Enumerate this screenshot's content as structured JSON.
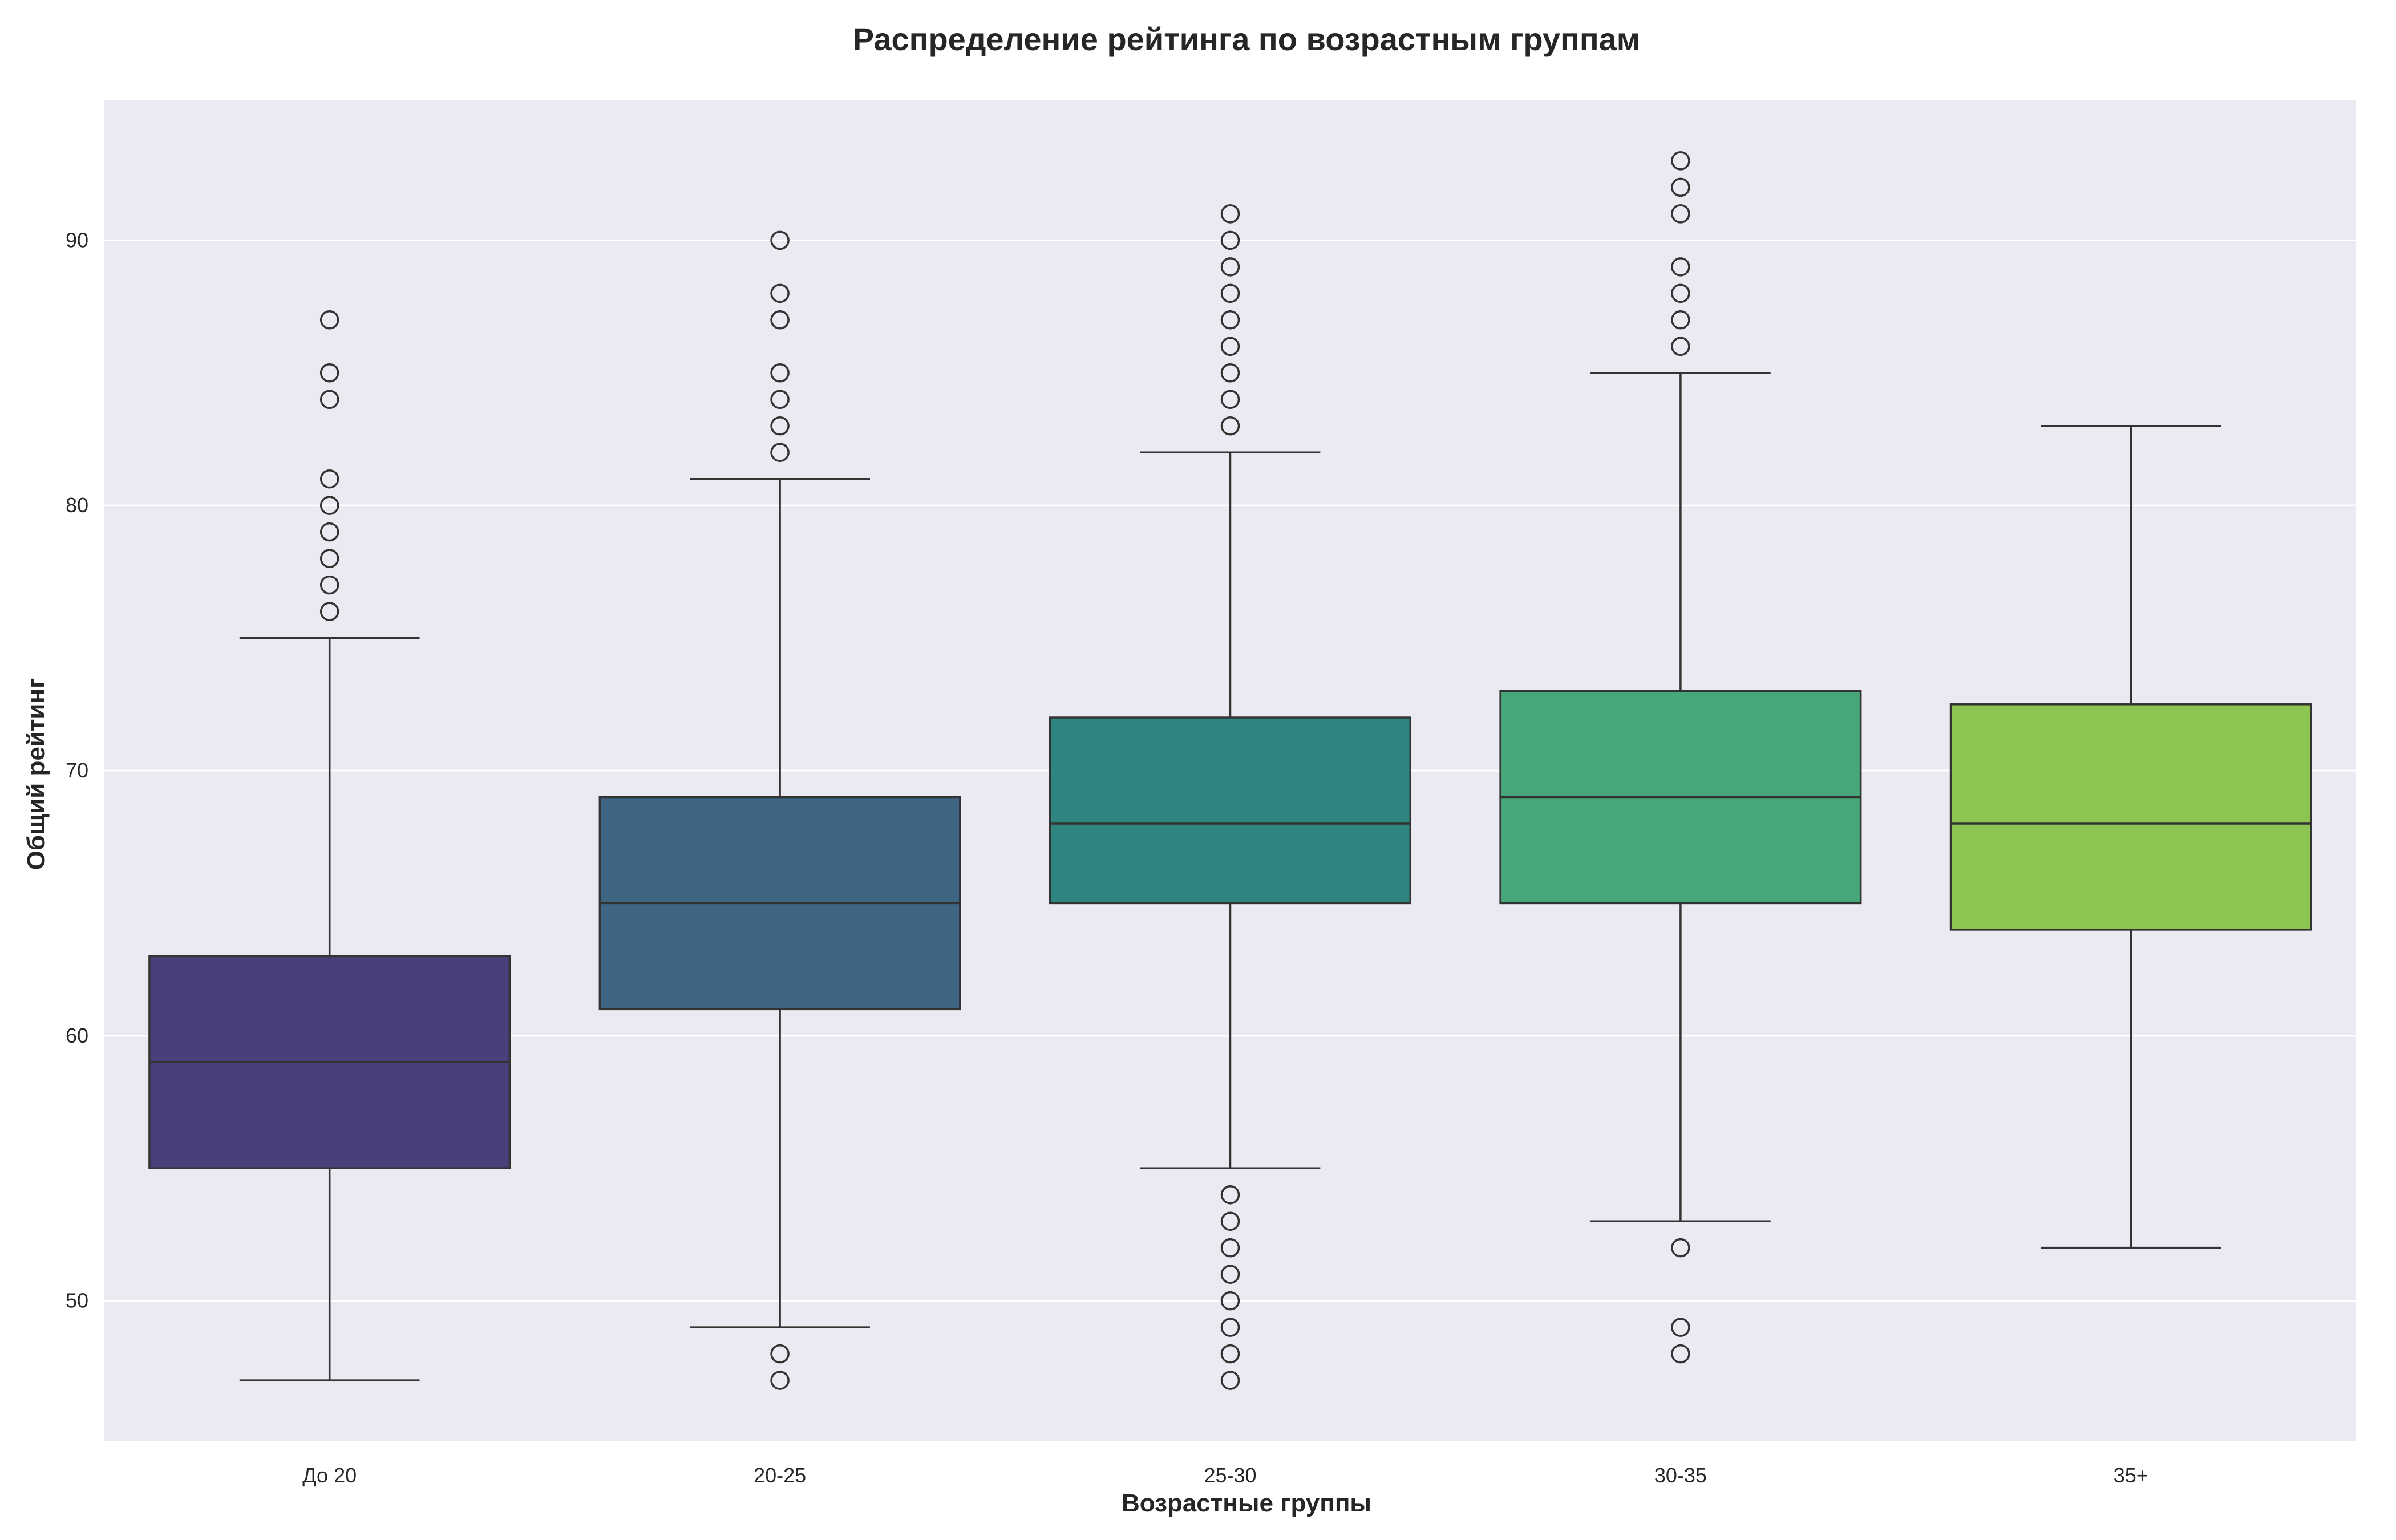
{
  "chart_data": {
    "type": "box",
    "title": "Распределение рейтинга по возрастным группам",
    "xlabel": "Возрастные группы",
    "ylabel": "Общий рейтинг",
    "ylim": [
      44.7,
      95.3
    ],
    "yticks": [
      50,
      60,
      70,
      80,
      90
    ],
    "grid": true,
    "legend": "none",
    "categories": [
      "До 20",
      "20-25",
      "25-30",
      "30-35",
      "35+"
    ],
    "groups": [
      {
        "category": "До 20",
        "color": "#4a3f79",
        "whisker_low": 47,
        "q1": 55,
        "median": 59,
        "q3": 63,
        "whisker_high": 75,
        "outliers": [
          76,
          77,
          78,
          79,
          80,
          81,
          84,
          85,
          87
        ]
      },
      {
        "category": "20-25",
        "color": "#3e6582",
        "whisker_low": 49,
        "q1": 61,
        "median": 65,
        "q3": 69,
        "whisker_high": 81,
        "outliers": [
          47,
          48,
          82,
          83,
          84,
          85,
          87,
          88,
          90
        ]
      },
      {
        "category": "25-30",
        "color": "#2f8580",
        "whisker_low": 55,
        "q1": 65,
        "median": 68,
        "q3": 72,
        "whisker_high": 82,
        "outliers": [
          47,
          48,
          49,
          50,
          51,
          52,
          53,
          54,
          83,
          84,
          85,
          86,
          87,
          88,
          89,
          90,
          91
        ]
      },
      {
        "category": "30-35",
        "color": "#46a878",
        "whisker_low": 53,
        "q1": 65,
        "median": 69,
        "q3": 73,
        "whisker_high": 85,
        "outliers": [
          48,
          49,
          52,
          86,
          87,
          88,
          89,
          91,
          92,
          93
        ]
      },
      {
        "category": "35+",
        "color": "#8cc552",
        "whisker_low": 52,
        "q1": 64,
        "median": 68,
        "q3": 72.5,
        "whisker_high": 83,
        "outliers": []
      }
    ]
  }
}
